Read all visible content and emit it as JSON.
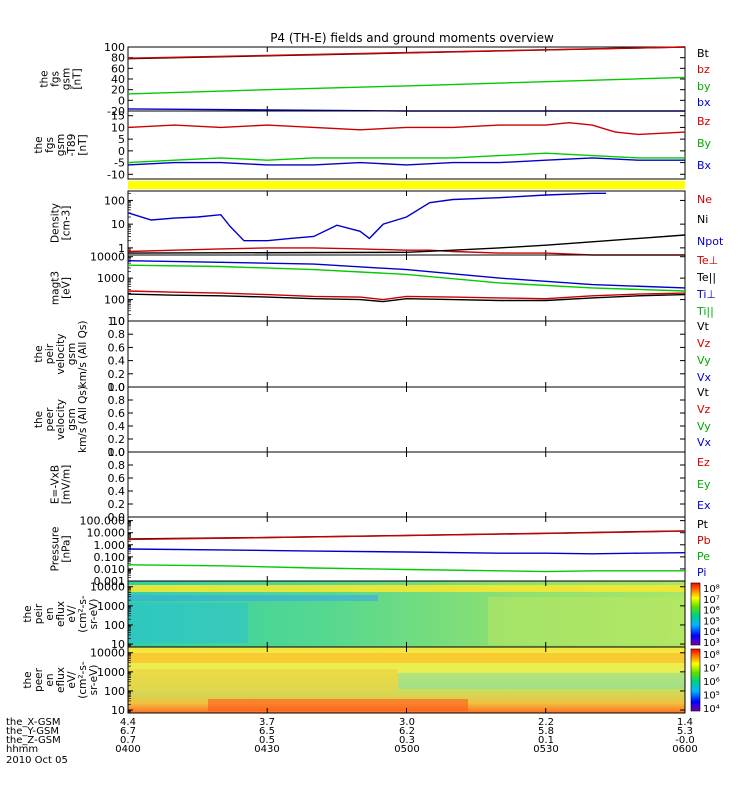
{
  "chart_data": {
    "type": "line",
    "title": "P4 (TH-E) fields and ground moments overview",
    "time": {
      "start": "2010-10-05T04:00",
      "end": "2010-10-05T06:00",
      "ticks": [
        "0400",
        "0430",
        "0500",
        "0530",
        "0600"
      ],
      "date_label": "2010 Oct 05"
    },
    "orbit_labels": [
      {
        "name": "the_X-GSM",
        "values": [
          "4.4",
          "3.7",
          "3.0",
          "2.2",
          "1.4"
        ]
      },
      {
        "name": "the_Y-GSM",
        "values": [
          "6.7",
          "6.5",
          "6.2",
          "5.8",
          "5.3"
        ]
      },
      {
        "name": "the_Z-GSM",
        "values": [
          "0.7",
          "0.5",
          "0.3",
          "0.1",
          "-0.0"
        ]
      },
      {
        "name": "hhmm",
        "values": [
          "0400",
          "0430",
          "0500",
          "0530",
          "0600"
        ]
      }
    ],
    "panels": [
      {
        "id": "fgs-gsm",
        "ylabel": [
          "the",
          "fgs",
          "gsm",
          "[nT]"
        ],
        "scale": "linear",
        "ylim": [
          -20,
          100
        ],
        "ticks": [
          "100",
          "80",
          "60",
          "40",
          "20",
          "0",
          "-20"
        ],
        "tick_values": [
          100,
          80,
          60,
          40,
          20,
          0,
          -20
        ],
        "series": [
          {
            "name": "Bt",
            "color": "#000000",
            "x": [
              0,
              120
            ],
            "y": [
              78,
              103
            ]
          },
          {
            "name": "bz",
            "color": "#cc0000",
            "x": [
              0,
              120
            ],
            "y": [
              79,
              104
            ]
          },
          {
            "name": "by",
            "color": "#00cc00",
            "x": [
              0,
              30,
              60,
              90,
              120
            ],
            "y": [
              12,
              20,
              27,
              35,
              43
            ]
          },
          {
            "name": "bx",
            "color": "#0000cc",
            "x": [
              0,
              30,
              60,
              90,
              120
            ],
            "y": [
              -16,
              -18,
              -20,
              -21,
              -25
            ]
          }
        ]
      },
      {
        "id": "fgs-dgsm",
        "ylabel": [
          "the",
          "fgs",
          "gsm",
          "-T89",
          "[nT]"
        ],
        "scale": "linear",
        "ylim": [
          -12,
          17
        ],
        "ticks": [
          "15",
          "10",
          "5",
          "0",
          "-5",
          "-10"
        ],
        "tick_values": [
          15,
          10,
          5,
          0,
          -5,
          -10
        ],
        "series": [
          {
            "name": "Bz",
            "color": "#cc0000",
            "x": [
              0,
              10,
              20,
              30,
              40,
              50,
              60,
              70,
              80,
              90,
              95,
              100,
              105,
              110,
              120
            ],
            "y": [
              10,
              11,
              10,
              11,
              10,
              9,
              10,
              10,
              11,
              11,
              12,
              11,
              8,
              7,
              8
            ]
          },
          {
            "name": "By",
            "color": "#00cc00",
            "x": [
              0,
              10,
              20,
              30,
              40,
              50,
              60,
              70,
              80,
              90,
              100,
              110,
              120
            ],
            "y": [
              -5,
              -4,
              -3,
              -4,
              -3,
              -3,
              -3,
              -3,
              -2,
              -1,
              -2,
              -3,
              -3
            ]
          },
          {
            "name": "Bx",
            "color": "#0000cc",
            "x": [
              0,
              10,
              20,
              30,
              40,
              50,
              60,
              70,
              80,
              90,
              100,
              110,
              120
            ],
            "y": [
              -6,
              -5,
              -5,
              -6,
              -6,
              -5,
              -6,
              -5,
              -5,
              -4,
              -3,
              -4,
              -4
            ]
          }
        ]
      },
      {
        "id": "density",
        "ylabel": [
          "Density",
          "[cm-3]"
        ],
        "scale": "log",
        "ylim": [
          0.5,
          250
        ],
        "ticks": [
          "100",
          "10",
          "1"
        ],
        "tick_values": [
          100,
          10,
          1
        ],
        "series": [
          {
            "name": "Ne",
            "color": "#cc0000",
            "x": [
              0,
              10,
              20,
              30,
              40,
              50,
              60,
              65,
              70,
              80,
              90,
              100,
              110,
              120
            ],
            "y": [
              0.7,
              0.8,
              0.9,
              1.0,
              1.0,
              0.9,
              0.8,
              0.8,
              0.7,
              0.6,
              0.6,
              0.5,
              0.5,
              0.5
            ]
          },
          {
            "name": "Ni",
            "color": "#000000",
            "x": [
              0,
              60,
              70,
              80,
              90,
              100,
              110,
              120
            ],
            "y": [
              0.6,
              0.65,
              0.8,
              1.0,
              1.3,
              1.8,
              2.5,
              3.5
            ]
          },
          {
            "name": "Npot",
            "color": "#0000cc",
            "x": [
              0,
              5,
              10,
              15,
              20,
              22,
              25,
              30,
              35,
              40,
              45,
              50,
              52,
              55,
              60,
              65,
              70,
              80,
              90,
              100,
              103
            ],
            "y": [
              30,
              15,
              18,
              20,
              25,
              8,
              2,
              2,
              2.5,
              3,
              9,
              5,
              2.5,
              10,
              20,
              80,
              110,
              130,
              170,
              200,
              200
            ]
          }
        ]
      },
      {
        "id": "temperature",
        "ylabel": [
          "magt3",
          "[eV]"
        ],
        "scale": "log",
        "ylim": [
          10,
          12000
        ],
        "ticks": [
          "10000",
          "1000",
          "100",
          "10"
        ],
        "tick_values": [
          10000,
          1000,
          100,
          10
        ],
        "series": [
          {
            "name": "Te⊥",
            "color": "#cc0000",
            "x": [
              0,
              10,
              20,
              30,
              40,
              50,
              55,
              60,
              70,
              80,
              90,
              100,
              110,
              120
            ],
            "y": [
              250,
              220,
              200,
              170,
              140,
              130,
              100,
              140,
              130,
              120,
              110,
              150,
              180,
              200
            ]
          },
          {
            "name": "Te||",
            "color": "#000000",
            "x": [
              0,
              10,
              20,
              30,
              40,
              50,
              55,
              60,
              70,
              80,
              90,
              100,
              110,
              120
            ],
            "y": [
              180,
              160,
              150,
              130,
              110,
              100,
              80,
              110,
              100,
              90,
              90,
              120,
              150,
              170
            ]
          },
          {
            "name": "Ti⊥",
            "color": "#0000cc",
            "x": [
              0,
              20,
              40,
              60,
              80,
              100,
              120
            ],
            "y": [
              6500,
              5500,
              4500,
              2500,
              1000,
              500,
              350
            ]
          },
          {
            "name": "Ti||",
            "color": "#00cc00",
            "x": [
              0,
              20,
              40,
              60,
              80,
              100,
              120
            ],
            "y": [
              4000,
              3500,
              2500,
              1500,
              600,
              350,
              250
            ]
          }
        ]
      },
      {
        "id": "peir-velocity",
        "ylabel": [
          "the",
          "peir",
          "velocity",
          "gsm",
          "km/s (All Qs)"
        ],
        "scale": "linear",
        "ylim": [
          0,
          1
        ],
        "ticks": [
          "1.0",
          "0.8",
          "0.6",
          "0.4",
          "0.2",
          "0.0"
        ],
        "tick_values": [
          1.0,
          0.8,
          0.6,
          0.4,
          0.2,
          0.0
        ],
        "series": []
      },
      {
        "id": "peer-velocity",
        "ylabel": [
          "the",
          "peer",
          "velocity",
          "gsm",
          "km/s (All Qs)"
        ],
        "scale": "linear",
        "ylim": [
          0,
          1
        ],
        "ticks": [
          "1.0",
          "0.8",
          "0.6",
          "0.4",
          "0.2",
          "0.0"
        ],
        "tick_values": [
          1.0,
          0.8,
          0.6,
          0.4,
          0.2,
          0.0
        ],
        "series": []
      },
      {
        "id": "efield",
        "ylabel": [
          "E=-VxB",
          "[mV/m]"
        ],
        "scale": "linear",
        "ylim": [
          0,
          1
        ],
        "ticks": [
          "1.0",
          "0.8",
          "0.6",
          "0.4",
          "0.2",
          "0.0"
        ],
        "tick_values": [
          1.0,
          0.8,
          0.6,
          0.4,
          0.2,
          0.0
        ],
        "series": []
      },
      {
        "id": "pressure",
        "ylabel": [
          "Pressure",
          "[nPa]"
        ],
        "scale": "log",
        "ylim": [
          0.001,
          200
        ],
        "ticks": [
          "100.000",
          "10.000",
          "1.000",
          "0.100",
          "0.010",
          "0.001"
        ],
        "tick_values": [
          100,
          10,
          1,
          0.1,
          0.01,
          0.001
        ],
        "series": [
          {
            "name": "Pt",
            "color": "#000000",
            "x": [
              0,
              30,
              60,
              90,
              120
            ],
            "y": [
              3,
              4,
              6,
              9,
              14
            ]
          },
          {
            "name": "Pb",
            "color": "#cc0000",
            "x": [
              0,
              30,
              60,
              90,
              120
            ],
            "y": [
              2.8,
              3.9,
              5.8,
              8.8,
              13.5
            ]
          },
          {
            "name": "Pe",
            "color": "#00cc00",
            "x": [
              0,
              20,
              40,
              60,
              80,
              90,
              100,
              110,
              120
            ],
            "y": [
              0.022,
              0.018,
              0.012,
              0.009,
              0.007,
              0.006,
              0.007,
              0.007,
              0.007
            ]
          },
          {
            "name": "Pi",
            "color": "#0000cc",
            "x": [
              0,
              20,
              40,
              60,
              80,
              90,
              100,
              110,
              120
            ],
            "y": [
              0.45,
              0.38,
              0.3,
              0.25,
              0.2,
              0.2,
              0.18,
              0.2,
              0.22
            ]
          }
        ]
      },
      {
        "id": "peir-eflux",
        "type": "heatmap",
        "ylabel": [
          "the",
          "peir",
          "en",
          "eflux",
          "eV/",
          "(cm²-s-",
          "sr-eV)"
        ],
        "scale": "log",
        "ylim": [
          7,
          20000
        ],
        "ticks": [
          "10000",
          "1000",
          "100",
          "10"
        ],
        "tick_values": [
          10000,
          1000,
          100,
          10
        ],
        "colorbar": {
          "labels": [
            "10⁸",
            "10⁷",
            "10⁶",
            "10⁵",
            "10⁴",
            "10³"
          ],
          "range": [
            1000,
            100000000
          ]
        }
      },
      {
        "id": "peer-eflux",
        "type": "heatmap",
        "ylabel": [
          "the",
          "peer",
          "en",
          "eflux",
          "eV/",
          "(cm²-s-",
          "sr-eV)"
        ],
        "scale": "log",
        "ylim": [
          7,
          20000
        ],
        "ticks": [
          "10000",
          "1000",
          "100",
          "10"
        ],
        "tick_values": [
          10000,
          1000,
          100,
          10
        ],
        "colorbar": {
          "labels": [
            "10⁸",
            "10⁷",
            "10⁶",
            "10⁵",
            "10⁴"
          ],
          "range": [
            10000,
            100000000
          ]
        }
      }
    ],
    "legends": [
      {
        "panel": "fgs-gsm",
        "items": [
          {
            "text": "Bt",
            "color": "#000000"
          },
          {
            "text": "bz",
            "color": "#cc0000"
          },
          {
            "text": "by",
            "color": "#00aa00"
          },
          {
            "text": "bx",
            "color": "#0000cc"
          }
        ]
      },
      {
        "panel": "fgs-dgsm",
        "items": [
          {
            "text": "Bz",
            "color": "#cc0000"
          },
          {
            "text": "By",
            "color": "#00aa00"
          },
          {
            "text": "Bx",
            "color": "#0000cc"
          }
        ]
      },
      {
        "panel": "density",
        "items": [
          {
            "text": "Ne",
            "color": "#cc0000"
          },
          {
            "text": "Ni",
            "color": "#000000"
          },
          {
            "text": "Npot",
            "color": "#0000cc"
          }
        ]
      },
      {
        "panel": "temperature",
        "items": [
          {
            "text": "Te⊥",
            "color": "#cc0000"
          },
          {
            "text": "Te||",
            "color": "#000000"
          },
          {
            "text": "Ti⊥",
            "color": "#0000cc"
          },
          {
            "text": "Ti||",
            "color": "#00aa00"
          }
        ]
      },
      {
        "panel": "peir-velocity",
        "items": [
          {
            "text": "Vt",
            "color": "#000000"
          },
          {
            "text": "Vz",
            "color": "#cc0000"
          },
          {
            "text": "Vy",
            "color": "#00aa00"
          },
          {
            "text": "Vx",
            "color": "#0000cc"
          }
        ]
      },
      {
        "panel": "peer-velocity",
        "items": [
          {
            "text": "Vt",
            "color": "#000000"
          },
          {
            "text": "Vz",
            "color": "#cc0000"
          },
          {
            "text": "Vy",
            "color": "#00aa00"
          },
          {
            "text": "Vx",
            "color": "#0000cc"
          }
        ]
      },
      {
        "panel": "efield",
        "items": [
          {
            "text": "Ez",
            "color": "#cc0000"
          },
          {
            "text": "Ey",
            "color": "#00aa00"
          },
          {
            "text": "Ex",
            "color": "#0000cc"
          }
        ]
      },
      {
        "panel": "pressure",
        "items": [
          {
            "text": "Pt",
            "color": "#000000"
          },
          {
            "text": "Pb",
            "color": "#cc0000"
          },
          {
            "text": "Pe",
            "color": "#00aa00"
          },
          {
            "text": "Pi",
            "color": "#0000cc"
          }
        ]
      }
    ]
  }
}
